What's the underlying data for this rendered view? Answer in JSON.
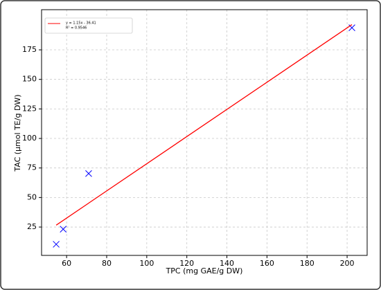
{
  "chart_data": {
    "type": "scatter",
    "xlabel": "TPC (mg GAE/g DW)",
    "ylabel": "TAC (μmol TE/g DW)",
    "xlim": [
      47.5,
      210
    ],
    "ylim": [
      1,
      209
    ],
    "xticks": [
      60,
      80,
      100,
      120,
      140,
      160,
      180,
      200
    ],
    "yticks": [
      25,
      50,
      75,
      100,
      125,
      150,
      175
    ],
    "grid": true,
    "legend": "upper left",
    "series": [
      {
        "type": "scatter",
        "color": "#0000ff",
        "marker": "x",
        "x": [
          54.8,
          58.3,
          71,
          202.4
        ],
        "values": [
          10.4,
          23.2,
          70.3,
          193.7
        ]
      },
      {
        "type": "line",
        "name": "y = 1.15x - 36.41",
        "name_line2": "R² = 0.9546",
        "color": "#ff0000",
        "x": [
          54.8,
          202.4
        ],
        "values": [
          26.61,
          196.35
        ]
      }
    ]
  }
}
